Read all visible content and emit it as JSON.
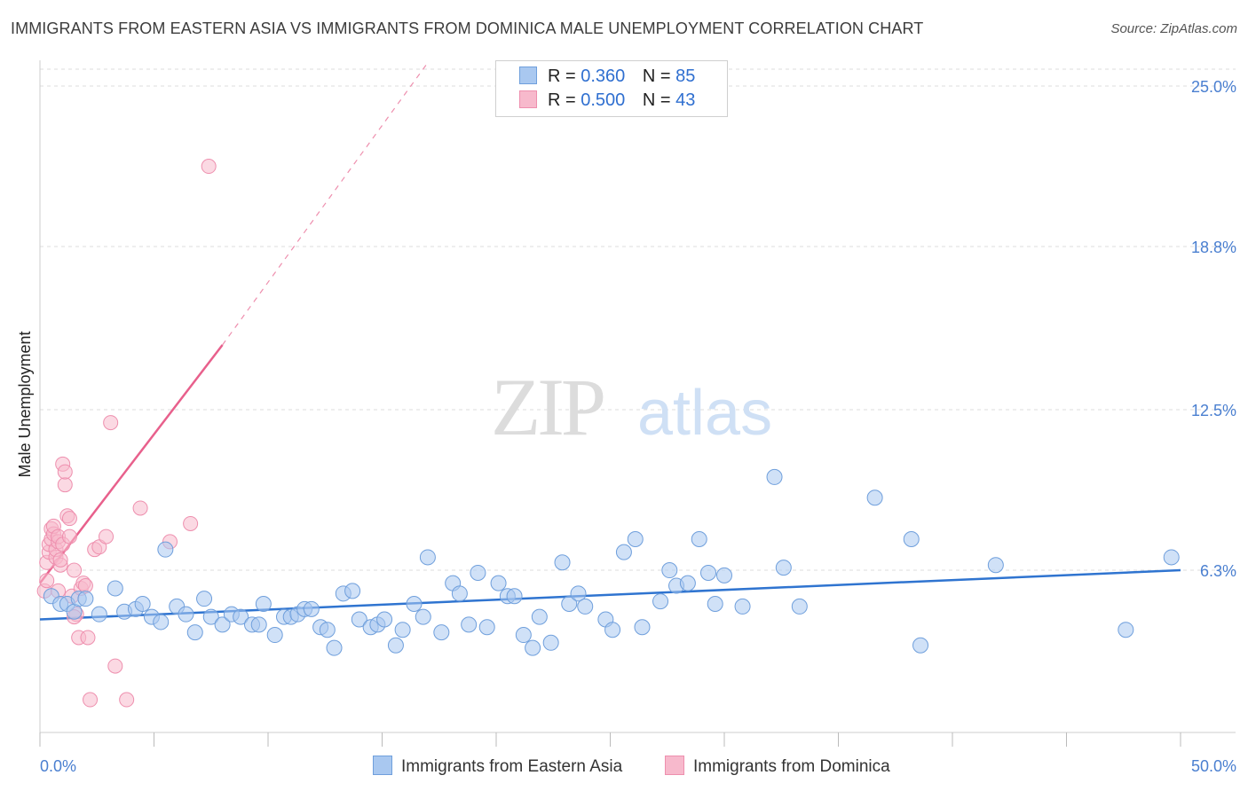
{
  "title": "IMMIGRANTS FROM EASTERN ASIA VS IMMIGRANTS FROM DOMINICA MALE UNEMPLOYMENT CORRELATION CHART",
  "source": "Source: ZipAtlas.com",
  "watermark": {
    "zip": "ZIP",
    "atlas": "atlas"
  },
  "legend": {
    "rows": [
      {
        "r_label": "R =",
        "r_value": "0.360",
        "n_label": "N =",
        "n_value": "85"
      },
      {
        "r_label": "R =",
        "r_value": "0.500",
        "n_label": "N =",
        "n_value": "43"
      }
    ]
  },
  "bottom_legend": {
    "series1": "Immigrants from Eastern Asia",
    "series2": "Immigrants from Dominica"
  },
  "colors": {
    "blue_fill": "#a9c8f0",
    "blue_stroke": "#6f9fdc",
    "blue_line": "#2f74d0",
    "pink_fill": "#f7b9cc",
    "pink_stroke": "#ee8fae",
    "pink_line": "#e8608c",
    "tick_text": "#4a7fd0",
    "grid": "#dddddd"
  },
  "chart_data": {
    "type": "scatter",
    "title": "IMMIGRANTS FROM EASTERN ASIA VS IMMIGRANTS FROM DOMINICA MALE UNEMPLOYMENT CORRELATION CHART",
    "xlabel": "",
    "ylabel": "Male Unemployment",
    "xlim": [
      0,
      50
    ],
    "ylim": [
      0,
      26.3
    ],
    "x_tick_labels": [
      "0.0%",
      "50.0%"
    ],
    "y_ticks": [
      6.3,
      12.5,
      18.8,
      25.0
    ],
    "y_tick_labels": [
      "6.3%",
      "12.5%",
      "18.8%",
      "25.0%"
    ],
    "grid": true,
    "legend_position": "top-center",
    "series": [
      {
        "name": "Immigrants from Eastern Asia",
        "r": 0.36,
        "n": 85,
        "trend": {
          "x": [
            0,
            50
          ],
          "y": [
            4.4,
            6.3
          ]
        },
        "points": [
          [
            0.5,
            5.3
          ],
          [
            0.9,
            5.0
          ],
          [
            1.2,
            5.0
          ],
          [
            1.5,
            4.7
          ],
          [
            1.7,
            5.2
          ],
          [
            2.0,
            5.2
          ],
          [
            2.6,
            4.6
          ],
          [
            3.3,
            5.6
          ],
          [
            3.7,
            4.7
          ],
          [
            4.2,
            4.8
          ],
          [
            4.5,
            5.0
          ],
          [
            4.9,
            4.5
          ],
          [
            5.3,
            4.3
          ],
          [
            5.5,
            7.1
          ],
          [
            6.0,
            4.9
          ],
          [
            6.4,
            4.6
          ],
          [
            6.8,
            3.9
          ],
          [
            7.2,
            5.2
          ],
          [
            7.5,
            4.5
          ],
          [
            8.0,
            4.2
          ],
          [
            8.4,
            4.6
          ],
          [
            8.8,
            4.5
          ],
          [
            9.3,
            4.2
          ],
          [
            9.6,
            4.2
          ],
          [
            9.8,
            5.0
          ],
          [
            10.3,
            3.8
          ],
          [
            10.7,
            4.5
          ],
          [
            11.0,
            4.5
          ],
          [
            11.3,
            4.6
          ],
          [
            11.6,
            4.8
          ],
          [
            11.9,
            4.8
          ],
          [
            12.3,
            4.1
          ],
          [
            12.6,
            4.0
          ],
          [
            12.9,
            3.3
          ],
          [
            13.3,
            5.4
          ],
          [
            13.7,
            5.5
          ],
          [
            14.0,
            4.4
          ],
          [
            14.5,
            4.1
          ],
          [
            14.8,
            4.2
          ],
          [
            15.1,
            4.4
          ],
          [
            15.6,
            3.4
          ],
          [
            15.9,
            4.0
          ],
          [
            16.4,
            5.0
          ],
          [
            16.8,
            4.5
          ],
          [
            17.0,
            6.8
          ],
          [
            17.6,
            3.9
          ],
          [
            18.1,
            5.8
          ],
          [
            18.4,
            5.4
          ],
          [
            18.8,
            4.2
          ],
          [
            19.2,
            6.2
          ],
          [
            19.6,
            4.1
          ],
          [
            20.1,
            5.8
          ],
          [
            20.5,
            5.3
          ],
          [
            20.8,
            5.3
          ],
          [
            21.2,
            3.8
          ],
          [
            21.6,
            3.3
          ],
          [
            21.9,
            4.5
          ],
          [
            22.4,
            3.5
          ],
          [
            22.9,
            6.6
          ],
          [
            23.2,
            5.0
          ],
          [
            23.6,
            5.4
          ],
          [
            23.9,
            4.9
          ],
          [
            24.8,
            4.4
          ],
          [
            25.1,
            4.0
          ],
          [
            25.6,
            7.0
          ],
          [
            26.1,
            7.5
          ],
          [
            26.4,
            4.1
          ],
          [
            27.2,
            5.1
          ],
          [
            27.6,
            6.3
          ],
          [
            27.9,
            5.7
          ],
          [
            28.4,
            5.8
          ],
          [
            28.9,
            7.5
          ],
          [
            29.3,
            6.2
          ],
          [
            29.6,
            5.0
          ],
          [
            30.0,
            6.1
          ],
          [
            30.8,
            4.9
          ],
          [
            32.2,
            9.9
          ],
          [
            32.6,
            6.4
          ],
          [
            33.3,
            4.9
          ],
          [
            36.6,
            9.1
          ],
          [
            38.2,
            7.5
          ],
          [
            38.6,
            3.4
          ],
          [
            41.9,
            6.5
          ],
          [
            47.6,
            4.0
          ],
          [
            49.6,
            6.8
          ]
        ]
      },
      {
        "name": "Immigrants from Dominica",
        "r": 0.5,
        "n": 43,
        "trend": {
          "x": [
            0,
            8
          ],
          "y": [
            5.8,
            15.0
          ],
          "dashed_extension_to": [
            17,
            25.9
          ]
        },
        "points": [
          [
            0.2,
            5.5
          ],
          [
            0.3,
            5.9
          ],
          [
            0.3,
            6.6
          ],
          [
            0.4,
            7.0
          ],
          [
            0.4,
            7.3
          ],
          [
            0.5,
            7.5
          ],
          [
            0.5,
            7.9
          ],
          [
            0.6,
            7.7
          ],
          [
            0.6,
            8.0
          ],
          [
            0.7,
            6.8
          ],
          [
            0.7,
            7.1
          ],
          [
            0.8,
            7.4
          ],
          [
            0.8,
            7.6
          ],
          [
            0.9,
            6.5
          ],
          [
            0.9,
            6.7
          ],
          [
            1.0,
            7.3
          ],
          [
            1.0,
            10.4
          ],
          [
            1.1,
            9.6
          ],
          [
            1.1,
            10.1
          ],
          [
            1.2,
            8.4
          ],
          [
            1.3,
            8.3
          ],
          [
            1.3,
            7.6
          ],
          [
            1.4,
            5.3
          ],
          [
            1.5,
            6.3
          ],
          [
            1.6,
            4.6
          ],
          [
            1.7,
            3.7
          ],
          [
            1.8,
            5.6
          ],
          [
            1.9,
            5.8
          ],
          [
            2.0,
            5.7
          ],
          [
            2.1,
            3.7
          ],
          [
            2.2,
            1.3
          ],
          [
            2.4,
            7.1
          ],
          [
            2.6,
            7.2
          ],
          [
            2.9,
            7.6
          ],
          [
            3.1,
            12.0
          ],
          [
            3.3,
            2.6
          ],
          [
            3.8,
            1.3
          ],
          [
            4.4,
            8.7
          ],
          [
            5.7,
            7.4
          ],
          [
            6.6,
            8.1
          ],
          [
            7.4,
            21.9
          ],
          [
            1.5,
            4.5
          ],
          [
            0.8,
            5.5
          ]
        ]
      }
    ]
  }
}
